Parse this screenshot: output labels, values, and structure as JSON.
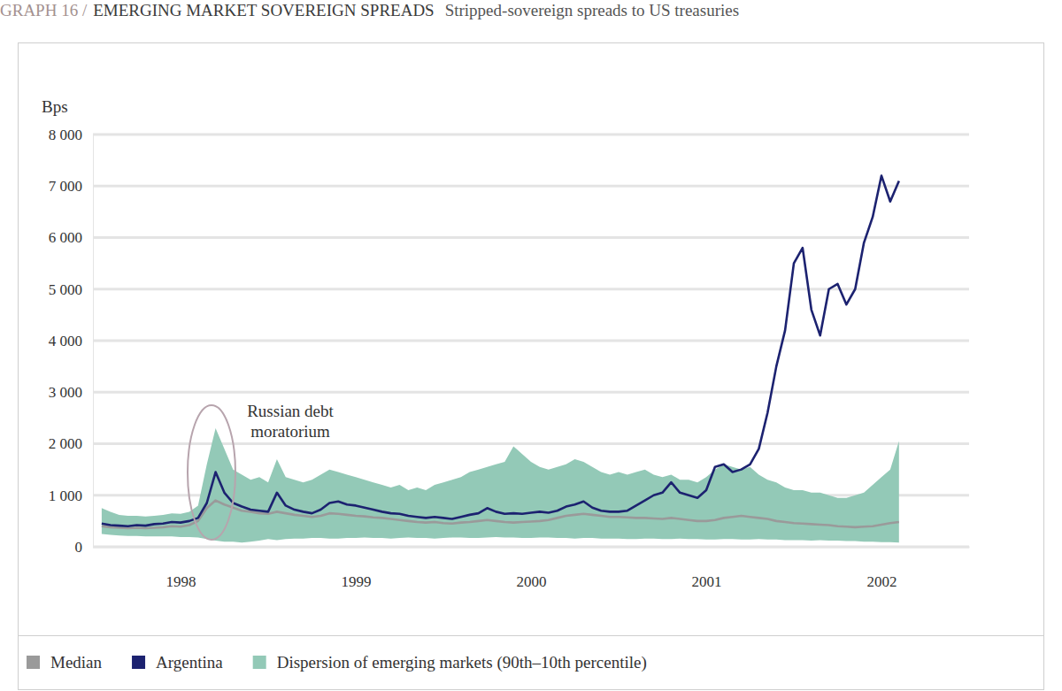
{
  "chart_data": {
    "type": "line",
    "figure_label": "GRAPH 16 /",
    "title": "EMERGING MARKET SOVEREIGN SPREADS",
    "subtitle": "Stripped-sovereign spreads to US treasuries",
    "ylabel": "Bps",
    "annotation": {
      "lines": [
        "Russian debt",
        "moratorium"
      ]
    },
    "xlim": [
      1998,
      2003
    ],
    "xticks": [
      {
        "value": 1998.5,
        "label": "1998"
      },
      {
        "value": 1999.5,
        "label": "1999"
      },
      {
        "value": 2000.5,
        "label": "2000"
      },
      {
        "value": 2001.5,
        "label": "2001"
      },
      {
        "value": 2002.5,
        "label": "2002"
      }
    ],
    "ylim": [
      0,
      8000
    ],
    "yticks": [
      0,
      {
        "value": 1000,
        "label": "1 000"
      },
      {
        "value": 2000,
        "label": "2 000"
      },
      {
        "value": 3000,
        "label": "3 000"
      },
      {
        "value": 4000,
        "label": "4 000"
      },
      {
        "value": 5000,
        "label": "5 000"
      },
      {
        "value": 6000,
        "label": "6 000"
      },
      {
        "value": 7000,
        "label": "7 000"
      },
      {
        "value": 8000,
        "label": "8 000"
      }
    ],
    "grid": true,
    "legend": "bottom",
    "x": [
      1998.05,
      1998.1,
      1998.15,
      1998.2,
      1998.25,
      1998.3,
      1998.35,
      1998.4,
      1998.45,
      1998.5,
      1998.55,
      1998.6,
      1998.65,
      1998.7,
      1998.75,
      1998.8,
      1998.85,
      1998.9,
      1998.95,
      1999,
      1999.05,
      1999.1,
      1999.15,
      1999.2,
      1999.25,
      1999.3,
      1999.35,
      1999.4,
      1999.45,
      1999.5,
      1999.55,
      1999.6,
      1999.65,
      1999.7,
      1999.75,
      1999.8,
      1999.85,
      1999.9,
      1999.95,
      2000,
      2000.05,
      2000.1,
      2000.15,
      2000.2,
      2000.25,
      2000.3,
      2000.35,
      2000.4,
      2000.45,
      2000.5,
      2000.55,
      2000.6,
      2000.65,
      2000.7,
      2000.75,
      2000.8,
      2000.85,
      2000.9,
      2000.95,
      2001,
      2001.05,
      2001.1,
      2001.15,
      2001.2,
      2001.25,
      2001.3,
      2001.35,
      2001.4,
      2001.45,
      2001.5,
      2001.55,
      2001.6,
      2001.65,
      2001.7,
      2001.75,
      2001.8,
      2001.85,
      2001.9,
      2001.95,
      2002,
      2002.05,
      2002.1,
      2002.15,
      2002.2,
      2002.25,
      2002.3,
      2002.35,
      2002.4,
      2002.45,
      2002.5,
      2002.55,
      2002.6
    ],
    "series": [
      {
        "name": "Median",
        "color": "#9a9a9a",
        "values": [
          400,
          380,
          370,
          360,
          370,
          360,
          370,
          380,
          400,
          390,
          420,
          500,
          750,
          900,
          820,
          760,
          700,
          680,
          650,
          640,
          680,
          650,
          620,
          600,
          580,
          600,
          650,
          640,
          620,
          600,
          590,
          570,
          560,
          540,
          520,
          500,
          480,
          470,
          480,
          460,
          450,
          470,
          480,
          500,
          520,
          500,
          480,
          470,
          480,
          490,
          500,
          520,
          560,
          600,
          620,
          640,
          620,
          600,
          580,
          580,
          570,
          560,
          560,
          550,
          540,
          560,
          540,
          520,
          500,
          500,
          520,
          560,
          580,
          600,
          580,
          560,
          540,
          500,
          480,
          460,
          450,
          440,
          430,
          420,
          400,
          390,
          380,
          390,
          400,
          430,
          460,
          480
        ]
      },
      {
        "name": "Argentina",
        "color": "#1c2270",
        "values": [
          450,
          420,
          410,
          400,
          420,
          410,
          440,
          450,
          480,
          470,
          500,
          560,
          850,
          1450,
          1050,
          850,
          780,
          720,
          700,
          680,
          1050,
          800,
          720,
          680,
          650,
          720,
          850,
          880,
          820,
          800,
          760,
          720,
          680,
          650,
          640,
          600,
          580,
          560,
          580,
          560,
          540,
          580,
          620,
          650,
          750,
          680,
          640,
          650,
          640,
          660,
          680,
          660,
          700,
          780,
          820,
          880,
          760,
          700,
          680,
          680,
          700,
          800,
          900,
          1000,
          1050,
          1250,
          1050,
          1000,
          950,
          1100,
          1550,
          1600,
          1450,
          1500,
          1600,
          1900,
          2600,
          3500,
          4200,
          5500,
          5800,
          4600,
          4100,
          5000,
          5100,
          4700,
          5000,
          5900,
          6400,
          7200,
          6700,
          7100
        ]
      },
      {
        "name": "Dispersion of emerging markets (90th–10th percentile)",
        "type": "area",
        "color": "#93c9b7",
        "high": [
          750,
          680,
          620,
          600,
          600,
          590,
          600,
          620,
          650,
          640,
          680,
          800,
          1600,
          2300,
          1900,
          1500,
          1400,
          1300,
          1350,
          1250,
          1700,
          1350,
          1300,
          1250,
          1300,
          1400,
          1500,
          1450,
          1400,
          1350,
          1300,
          1250,
          1200,
          1150,
          1200,
          1100,
          1150,
          1100,
          1200,
          1250,
          1300,
          1350,
          1450,
          1500,
          1550,
          1600,
          1650,
          1950,
          1800,
          1650,
          1550,
          1500,
          1550,
          1600,
          1700,
          1650,
          1550,
          1450,
          1400,
          1450,
          1400,
          1450,
          1500,
          1400,
          1350,
          1400,
          1300,
          1300,
          1250,
          1350,
          1500,
          1600,
          1550,
          1500,
          1550,
          1400,
          1300,
          1250,
          1150,
          1100,
          1100,
          1050,
          1050,
          1000,
          950,
          950,
          1000,
          1050,
          1200,
          1350,
          1500,
          2050
        ],
        "low": [
          250,
          230,
          220,
          210,
          210,
          200,
          200,
          200,
          200,
          190,
          190,
          180,
          150,
          120,
          100,
          100,
          80,
          100,
          120,
          150,
          130,
          150,
          160,
          160,
          170,
          170,
          160,
          160,
          170,
          170,
          180,
          170,
          170,
          160,
          170,
          180,
          170,
          170,
          160,
          170,
          180,
          180,
          170,
          170,
          180,
          190,
          180,
          180,
          170,
          170,
          180,
          180,
          170,
          170,
          160,
          170,
          170,
          160,
          160,
          160,
          150,
          150,
          160,
          160,
          150,
          150,
          160,
          150,
          150,
          140,
          140,
          150,
          150,
          140,
          140,
          150,
          140,
          140,
          130,
          130,
          130,
          120,
          130,
          120,
          120,
          110,
          110,
          100,
          100,
          90,
          90,
          80
        ]
      }
    ]
  }
}
